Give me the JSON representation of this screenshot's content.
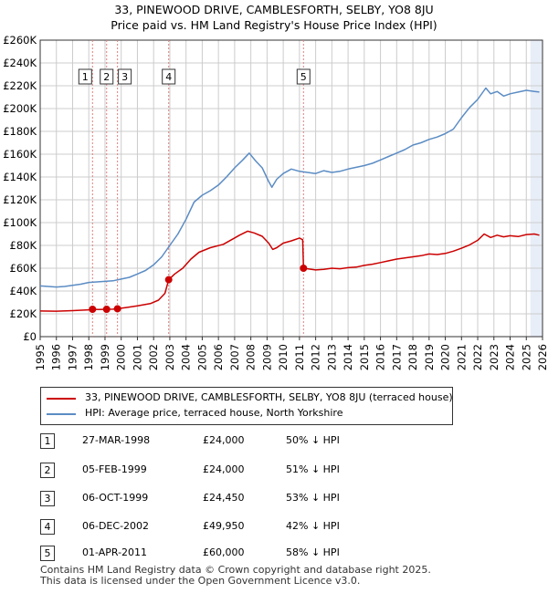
{
  "title_line1": "33, PINEWOOD DRIVE, CAMBLESFORTH, SELBY, YO8 8JU",
  "title_line2": "Price paid vs. HM Land Registry's House Price Index (HPI)",
  "colors": {
    "price_line": "#cc0000",
    "hpi_line": "#5b8cc4",
    "marker_line": "#e08080",
    "grid": "#cccccc",
    "future_shade": "#e8eef8"
  },
  "chart_data": {
    "type": "line",
    "x_range": [
      1995,
      2026
    ],
    "ylim": [
      0,
      260000
    ],
    "y_ticks": [
      {
        "value": 0,
        "label": "£0"
      },
      {
        "value": 20000,
        "label": "£20K"
      },
      {
        "value": 40000,
        "label": "£40K"
      },
      {
        "value": 60000,
        "label": "£60K"
      },
      {
        "value": 80000,
        "label": "£80K"
      },
      {
        "value": 100000,
        "label": "£100K"
      },
      {
        "value": 120000,
        "label": "£120K"
      },
      {
        "value": 140000,
        "label": "£140K"
      },
      {
        "value": 160000,
        "label": "£160K"
      },
      {
        "value": 180000,
        "label": "£180K"
      },
      {
        "value": 200000,
        "label": "£200K"
      },
      {
        "value": 220000,
        "label": "£220K"
      },
      {
        "value": 240000,
        "label": "£240K"
      },
      {
        "value": 260000,
        "label": "£260K"
      }
    ],
    "x_ticks": [
      "1995",
      "1996",
      "1997",
      "1998",
      "1999",
      "2000",
      "2001",
      "2002",
      "2003",
      "2004",
      "2005",
      "2006",
      "2007",
      "2008",
      "2009",
      "2010",
      "2011",
      "2012",
      "2013",
      "2014",
      "2015",
      "2016",
      "2017",
      "2018",
      "2019",
      "2020",
      "2021",
      "2022",
      "2023",
      "2024",
      "2025",
      "2026"
    ],
    "future_from": 2025.25,
    "series": [
      {
        "name": "33, PINEWOOD DRIVE, CAMBLESFORTH, SELBY, YO8 8JU (terraced house)",
        "points": [
          [
            1995.0,
            22500
          ],
          [
            1996.0,
            22300
          ],
          [
            1997.0,
            22800
          ],
          [
            1998.0,
            23500
          ],
          [
            1998.23,
            24000
          ],
          [
            1998.6,
            23800
          ],
          [
            1999.1,
            24000
          ],
          [
            1999.5,
            24100
          ],
          [
            1999.77,
            24450
          ],
          [
            2000.3,
            25500
          ],
          [
            2001.0,
            27000
          ],
          [
            2001.8,
            29000
          ],
          [
            2002.3,
            32000
          ],
          [
            2002.7,
            38000
          ],
          [
            2002.93,
            49950
          ],
          [
            2003.3,
            55000
          ],
          [
            2003.8,
            60000
          ],
          [
            2004.3,
            68000
          ],
          [
            2004.8,
            74000
          ],
          [
            2005.5,
            78000
          ],
          [
            2006.3,
            81000
          ],
          [
            2006.8,
            85000
          ],
          [
            2007.3,
            89000
          ],
          [
            2007.8,
            92500
          ],
          [
            2008.2,
            91000
          ],
          [
            2008.7,
            88000
          ],
          [
            2009.1,
            82000
          ],
          [
            2009.35,
            76500
          ],
          [
            2009.6,
            78000
          ],
          [
            2010.0,
            82000
          ],
          [
            2010.5,
            84000
          ],
          [
            2011.0,
            86500
          ],
          [
            2011.2,
            85000
          ],
          [
            2011.25,
            60000
          ],
          [
            2011.5,
            59500
          ],
          [
            2012.0,
            58500
          ],
          [
            2012.5,
            59000
          ],
          [
            2013.0,
            60000
          ],
          [
            2013.5,
            59500
          ],
          [
            2014.0,
            60500
          ],
          [
            2014.5,
            61000
          ],
          [
            2015.0,
            62500
          ],
          [
            2015.5,
            63500
          ],
          [
            2016.0,
            65000
          ],
          [
            2016.5,
            66500
          ],
          [
            2017.0,
            68000
          ],
          [
            2017.5,
            69000
          ],
          [
            2018.0,
            70000
          ],
          [
            2018.5,
            71000
          ],
          [
            2019.0,
            72500
          ],
          [
            2019.5,
            72000
          ],
          [
            2020.0,
            73000
          ],
          [
            2020.5,
            75000
          ],
          [
            2021.0,
            77500
          ],
          [
            2021.5,
            80500
          ],
          [
            2022.0,
            84500
          ],
          [
            2022.4,
            90000
          ],
          [
            2022.8,
            87000
          ],
          [
            2023.2,
            89000
          ],
          [
            2023.6,
            87500
          ],
          [
            2024.0,
            88500
          ],
          [
            2024.5,
            87800
          ],
          [
            2025.0,
            89500
          ],
          [
            2025.5,
            90000
          ],
          [
            2025.8,
            89000
          ]
        ]
      },
      {
        "name": "HPI: Average price, terraced house, North Yorkshire",
        "points": [
          [
            1995.0,
            44500
          ],
          [
            1995.5,
            44000
          ],
          [
            1996.0,
            43500
          ],
          [
            1996.5,
            44000
          ],
          [
            1997.0,
            45000
          ],
          [
            1997.5,
            46000
          ],
          [
            1998.0,
            47500
          ],
          [
            1998.5,
            48000
          ],
          [
            1999.0,
            48500
          ],
          [
            1999.5,
            49000
          ],
          [
            2000.0,
            50500
          ],
          [
            2000.5,
            52000
          ],
          [
            2001.0,
            55000
          ],
          [
            2001.5,
            58000
          ],
          [
            2002.0,
            63000
          ],
          [
            2002.5,
            70000
          ],
          [
            2003.0,
            80000
          ],
          [
            2003.5,
            90000
          ],
          [
            2004.0,
            103000
          ],
          [
            2004.5,
            118000
          ],
          [
            2005.0,
            124000
          ],
          [
            2005.5,
            128000
          ],
          [
            2006.0,
            133000
          ],
          [
            2006.5,
            140000
          ],
          [
            2007.0,
            148000
          ],
          [
            2007.5,
            155000
          ],
          [
            2007.9,
            161000
          ],
          [
            2008.3,
            154000
          ],
          [
            2008.7,
            148000
          ],
          [
            2009.1,
            136000
          ],
          [
            2009.3,
            131000
          ],
          [
            2009.6,
            138000
          ],
          [
            2010.0,
            143000
          ],
          [
            2010.5,
            147000
          ],
          [
            2011.0,
            145000
          ],
          [
            2011.5,
            144000
          ],
          [
            2012.0,
            143000
          ],
          [
            2012.5,
            145500
          ],
          [
            2013.0,
            144000
          ],
          [
            2013.5,
            145000
          ],
          [
            2014.0,
            147000
          ],
          [
            2014.5,
            148500
          ],
          [
            2015.0,
            150000
          ],
          [
            2015.5,
            152000
          ],
          [
            2016.0,
            155000
          ],
          [
            2016.5,
            158000
          ],
          [
            2017.0,
            161000
          ],
          [
            2017.5,
            164000
          ],
          [
            2018.0,
            168000
          ],
          [
            2018.5,
            170000
          ],
          [
            2019.0,
            173000
          ],
          [
            2019.5,
            175000
          ],
          [
            2020.0,
            178000
          ],
          [
            2020.5,
            182000
          ],
          [
            2021.0,
            192000
          ],
          [
            2021.5,
            201000
          ],
          [
            2022.0,
            208000
          ],
          [
            2022.5,
            218000
          ],
          [
            2022.8,
            213000
          ],
          [
            2023.2,
            215000
          ],
          [
            2023.6,
            211000
          ],
          [
            2024.0,
            213000
          ],
          [
            2024.5,
            214500
          ],
          [
            2025.0,
            216000
          ],
          [
            2025.5,
            215000
          ],
          [
            2025.8,
            214500
          ]
        ]
      }
    ],
    "sales": [
      {
        "num": "1",
        "x": 1998.23,
        "price": 24000
      },
      {
        "num": "2",
        "x": 1999.1,
        "price": 24000
      },
      {
        "num": "3",
        "x": 1999.77,
        "price": 24450
      },
      {
        "num": "4",
        "x": 2002.93,
        "price": 49950
      },
      {
        "num": "5",
        "x": 2011.25,
        "price": 60000
      }
    ]
  },
  "legend": {
    "price_label": "33, PINEWOOD DRIVE, CAMBLESFORTH, SELBY, YO8 8JU (terraced house)",
    "hpi_label": "HPI: Average price, terraced house, North Yorkshire"
  },
  "transactions": [
    {
      "num": "1",
      "date": "27-MAR-1998",
      "price": "£24,000",
      "hpi": "50% ↓ HPI"
    },
    {
      "num": "2",
      "date": "05-FEB-1999",
      "price": "£24,000",
      "hpi": "51% ↓ HPI"
    },
    {
      "num": "3",
      "date": "06-OCT-1999",
      "price": "£24,450",
      "hpi": "53% ↓ HPI"
    },
    {
      "num": "4",
      "date": "06-DEC-2002",
      "price": "£49,950",
      "hpi": "42% ↓ HPI"
    },
    {
      "num": "5",
      "date": "01-APR-2011",
      "price": "£60,000",
      "hpi": "58% ↓ HPI"
    }
  ],
  "footer": {
    "line1": "Contains HM Land Registry data © Crown copyright and database right 2025.",
    "line2": "This data is licensed under the Open Government Licence v3.0."
  }
}
